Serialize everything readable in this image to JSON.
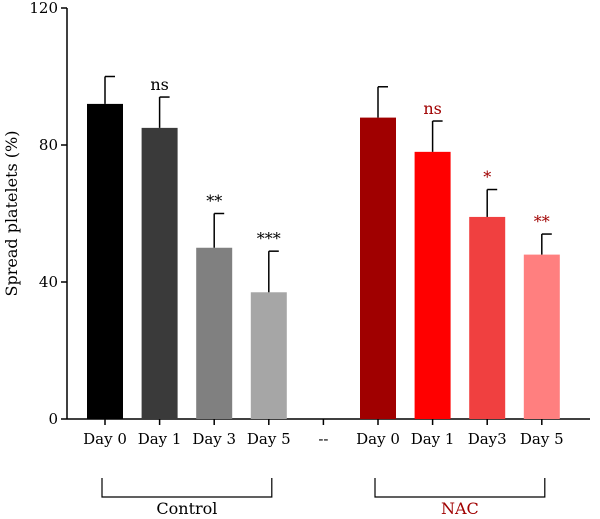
{
  "chart_data": {
    "type": "bar",
    "title": "",
    "xlabel": "",
    "ylabel": "Spread platelets (%)",
    "ylim": [
      0,
      120
    ],
    "yticks": [
      0,
      40,
      80,
      120
    ],
    "grid": false,
    "categories": [
      "Day 0",
      "Day 1",
      "Day 3",
      "Day 5",
      "--",
      "Day 0",
      "Day 1",
      "Day3",
      "Day 5"
    ],
    "values": [
      92,
      85,
      50,
      37,
      null,
      88,
      78,
      59,
      48
    ],
    "errors": [
      8,
      9,
      10,
      12,
      null,
      9,
      9,
      8,
      6
    ],
    "significance": [
      "",
      "ns",
      "**",
      "***",
      "",
      "",
      "ns",
      "*",
      "**"
    ],
    "colors": [
      "#000000",
      "#3a3a3a",
      "#808080",
      "#a6a6a6",
      "",
      "#a00000",
      "#ff0000",
      "#f04040",
      "#ff7f7f"
    ],
    "sig_colors": [
      "#000000",
      "#000000",
      "#000000",
      "#000000",
      "",
      "#a00000",
      "#a00000",
      "#a00000",
      "#a00000"
    ],
    "groups": [
      {
        "name": "Control",
        "start": 0,
        "end": 3,
        "color": "#000000"
      },
      {
        "name": "NAC",
        "start": 5,
        "end": 8,
        "color": "#a00000"
      }
    ]
  }
}
